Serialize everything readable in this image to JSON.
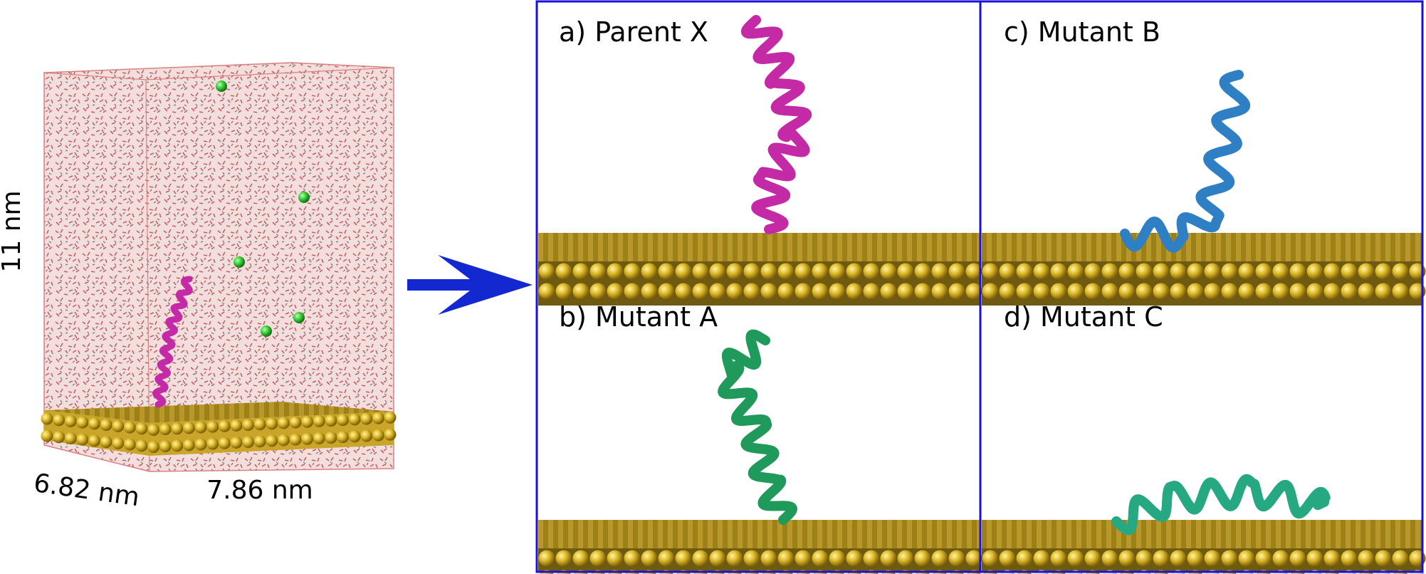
{
  "simulation_box": {
    "height_label": "11 nm",
    "depth_label": "6.82 nm",
    "width_label": "7.86 nm"
  },
  "panels": [
    {
      "id": "a",
      "label": "a) Parent X",
      "helix_color": "#c42aa6"
    },
    {
      "id": "b",
      "label": "b) Mutant A",
      "helix_color": "#1f9a5a"
    },
    {
      "id": "c",
      "label": "c) Mutant B",
      "helix_color": "#2f7fc4"
    },
    {
      "id": "d",
      "label": "d) Mutant C",
      "helix_color": "#26a883"
    }
  ],
  "colors": {
    "frame": "#1a10d8",
    "arrow": "#1428d2",
    "gold": "#d9b52a",
    "gold_top": "#9a7f18",
    "water": "#c97a7a",
    "ion": "#33cc33"
  }
}
